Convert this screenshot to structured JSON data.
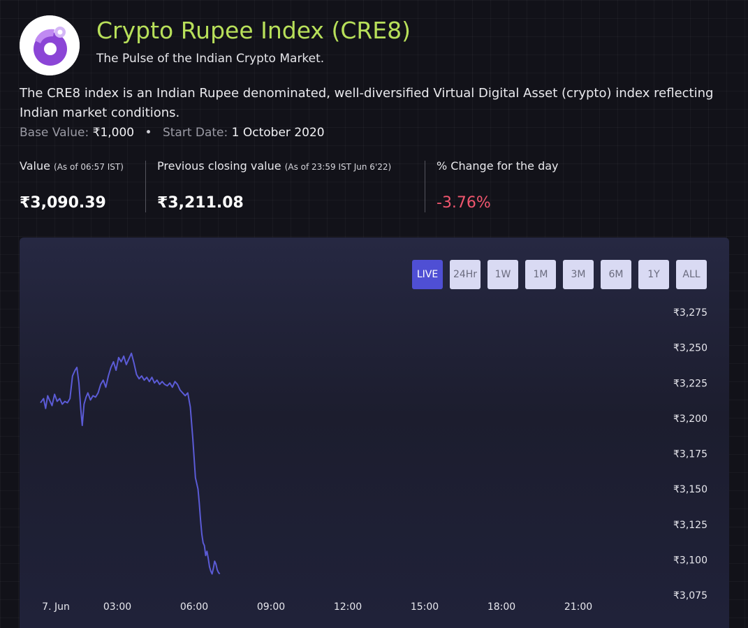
{
  "header": {
    "title": "Crypto Rupee Index (CRE8)",
    "subtitle": "The Pulse of the Indian Crypto Market."
  },
  "description": "The CRE8 index is an Indian Rupee denominated, well-diversified Virtual Digital Asset (crypto) index reflecting Indian market conditions.",
  "meta": {
    "base_label": "Base Value:",
    "base_value": "₹1,000",
    "separator": "•",
    "start_label": "Start Date:",
    "start_value": "1 October 2020"
  },
  "stats": {
    "value_label": "Value",
    "value_note": "(As of 06:57 IST)",
    "value": "₹3,090.39",
    "prev_label": "Previous closing value",
    "prev_note": "(As of 23:59 IST Jun 6'22)",
    "prev_value": "₹3,211.08",
    "change_label": "% Change for the day",
    "change_value": "-3.76%"
  },
  "ranges": {
    "active": "LIVE",
    "items": [
      "LIVE",
      "24Hr",
      "1W",
      "1M",
      "3M",
      "6M",
      "1Y",
      "ALL"
    ]
  },
  "colors": {
    "title": "#b8e05a",
    "negative": "#f0566e",
    "line": "#5b5bd6",
    "active_button": "#4f4fd4"
  },
  "chart_data": {
    "type": "line",
    "ylim": [
      3075,
      3275
    ],
    "y_ticks": [
      3275,
      3250,
      3225,
      3200,
      3175,
      3150,
      3125,
      3100,
      3075
    ],
    "y_tick_labels": [
      "₹3,275",
      "₹3,250",
      "₹3,225",
      "₹3,200",
      "₹3,175",
      "₹3,150",
      "₹3,125",
      "₹3,100",
      "₹3,075"
    ],
    "x_range_hours": [
      0,
      24
    ],
    "x_ticks": [
      0,
      3,
      6,
      9,
      12,
      15,
      18,
      21
    ],
    "x_tick_labels": [
      "7. Jun",
      "03:00",
      "06:00",
      "09:00",
      "12:00",
      "15:00",
      "18:00",
      "21:00"
    ],
    "series": [
      {
        "x": [
          0.0,
          0.12,
          0.2,
          0.28,
          0.35,
          0.45,
          0.55,
          0.65,
          0.75,
          0.85,
          0.95,
          1.05,
          1.15,
          1.25,
          1.35,
          1.42,
          1.5,
          1.57,
          1.63,
          1.7,
          1.78,
          1.85,
          1.95,
          2.05,
          2.15,
          2.25,
          2.35,
          2.45,
          2.55,
          2.65,
          2.75,
          2.85,
          2.95,
          3.05,
          3.15,
          3.25,
          3.35,
          3.45,
          3.55,
          3.65,
          3.75,
          3.85,
          3.95,
          4.05,
          4.15,
          4.25,
          4.35,
          4.45,
          4.55,
          4.65,
          4.75,
          4.85,
          4.95,
          5.05,
          5.15,
          5.25,
          5.35,
          5.45,
          5.55,
          5.65,
          5.75,
          5.85,
          5.95,
          6.05,
          6.15,
          6.2,
          6.25,
          6.3,
          6.35,
          6.4,
          6.45,
          6.5,
          6.55,
          6.6,
          6.65,
          6.7,
          6.75,
          6.8,
          6.85,
          6.9,
          6.95,
          7.0
        ],
        "y": [
          3211,
          3214,
          3207,
          3216,
          3213,
          3209,
          3217,
          3212,
          3214,
          3210,
          3212,
          3211,
          3214,
          3230,
          3234,
          3236,
          3225,
          3207,
          3195,
          3210,
          3215,
          3218,
          3213,
          3216,
          3215,
          3218,
          3224,
          3227,
          3222,
          3230,
          3236,
          3240,
          3234,
          3243,
          3240,
          3244,
          3238,
          3242,
          3246,
          3239,
          3231,
          3228,
          3230,
          3227,
          3229,
          3226,
          3229,
          3225,
          3227,
          3224,
          3226,
          3224,
          3223,
          3225,
          3222,
          3226,
          3224,
          3220,
          3218,
          3216,
          3218,
          3208,
          3185,
          3158,
          3150,
          3140,
          3128,
          3118,
          3112,
          3110,
          3103,
          3106,
          3101,
          3095,
          3092,
          3090,
          3094,
          3099,
          3097,
          3093,
          3091,
          3090
        ]
      }
    ]
  }
}
